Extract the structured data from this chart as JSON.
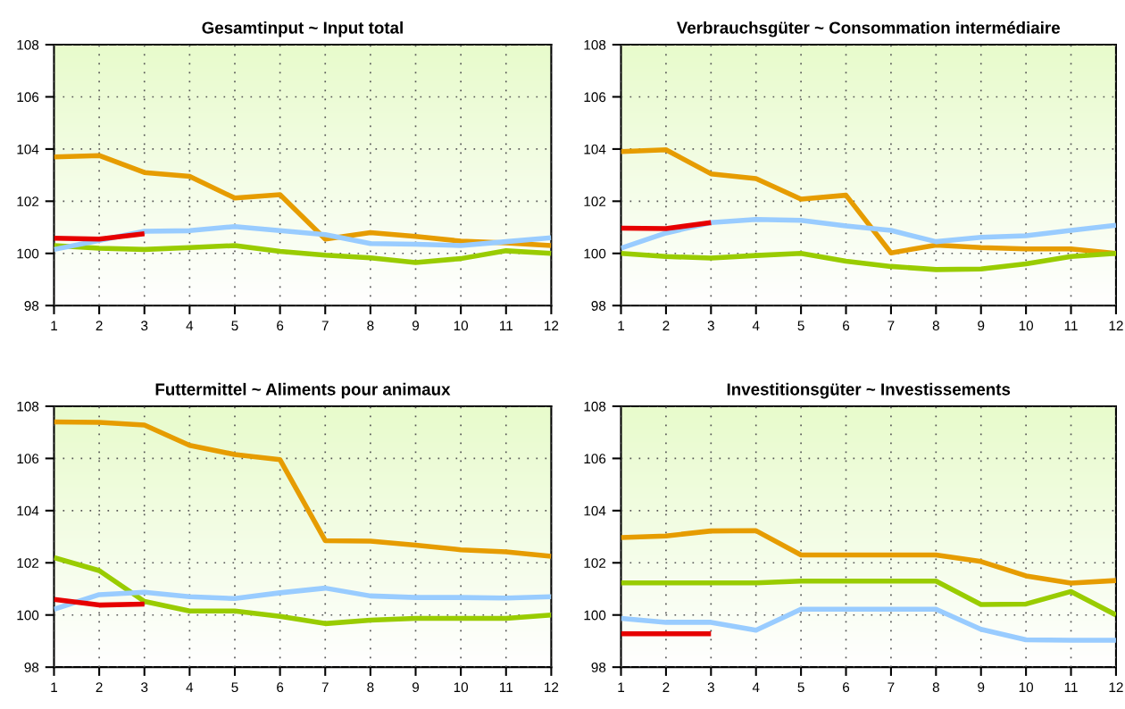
{
  "chart_data": [
    {
      "type": "line",
      "title": "Gesamtinput ~ Input total",
      "x": [
        1,
        2,
        3,
        4,
        5,
        6,
        7,
        8,
        9,
        10,
        11,
        12
      ],
      "xlim": [
        1,
        12
      ],
      "xticks": [
        1,
        2,
        3,
        4,
        5,
        6,
        7,
        8,
        9,
        10,
        11,
        12
      ],
      "ylim": [
        98,
        108
      ],
      "yticks": [
        98,
        100,
        102,
        104,
        106,
        108
      ],
      "grid": true,
      "marker": "none",
      "line_style": "solid",
      "series": [
        {
          "color": "#e69c00",
          "values": [
            103.7,
            103.75,
            103.1,
            102.95,
            102.12,
            102.25,
            100.55,
            100.8,
            100.65,
            100.47,
            100.4,
            100.3
          ]
        },
        {
          "color": "#99cc00",
          "values": [
            100.3,
            100.2,
            100.15,
            100.22,
            100.3,
            100.08,
            99.93,
            99.83,
            99.65,
            99.8,
            100.1,
            100.0
          ]
        },
        {
          "color": "#99ccff",
          "values": [
            100.15,
            100.5,
            100.85,
            100.87,
            101.03,
            100.87,
            100.72,
            100.38,
            100.35,
            100.3,
            100.45,
            100.6
          ]
        },
        {
          "color": "#e60000",
          "values": [
            100.58,
            100.55,
            100.75,
            null,
            null,
            null,
            null,
            null,
            null,
            null,
            null,
            null
          ]
        }
      ]
    },
    {
      "type": "line",
      "title": "Verbrauchsgüter ~ Consommation intermédiaire",
      "x": [
        1,
        2,
        3,
        4,
        5,
        6,
        7,
        8,
        9,
        10,
        11,
        12
      ],
      "xlim": [
        1,
        12
      ],
      "xticks": [
        1,
        2,
        3,
        4,
        5,
        6,
        7,
        8,
        9,
        10,
        11,
        12
      ],
      "ylim": [
        98,
        108
      ],
      "yticks": [
        98,
        100,
        102,
        104,
        106,
        108
      ],
      "grid": true,
      "marker": "none",
      "line_style": "solid",
      "series": [
        {
          "color": "#e69c00",
          "values": [
            103.9,
            103.97,
            103.05,
            102.87,
            102.08,
            102.23,
            100.02,
            100.32,
            100.22,
            100.17,
            100.17,
            100.0
          ]
        },
        {
          "color": "#99cc00",
          "values": [
            100.0,
            99.88,
            99.82,
            99.92,
            100.0,
            99.7,
            99.5,
            99.38,
            99.4,
            99.6,
            99.88,
            100.0
          ]
        },
        {
          "color": "#99ccff",
          "values": [
            100.2,
            100.78,
            101.18,
            101.3,
            101.27,
            101.05,
            100.88,
            100.45,
            100.62,
            100.68,
            100.88,
            101.08
          ]
        },
        {
          "color": "#e60000",
          "values": [
            100.97,
            100.95,
            101.18,
            null,
            null,
            null,
            null,
            null,
            null,
            null,
            null,
            null
          ]
        }
      ]
    },
    {
      "type": "line",
      "title": "Futtermittel ~ Aliments pour animaux",
      "x": [
        1,
        2,
        3,
        4,
        5,
        6,
        7,
        8,
        9,
        10,
        11,
        12
      ],
      "xlim": [
        1,
        12
      ],
      "xticks": [
        1,
        2,
        3,
        4,
        5,
        6,
        7,
        8,
        9,
        10,
        11,
        12
      ],
      "ylim": [
        98,
        108
      ],
      "yticks": [
        98,
        100,
        102,
        104,
        106,
        108
      ],
      "grid": true,
      "marker": "none",
      "line_style": "solid",
      "series": [
        {
          "color": "#e69c00",
          "values": [
            107.4,
            107.38,
            107.28,
            106.5,
            106.15,
            105.95,
            102.85,
            102.83,
            102.68,
            102.5,
            102.42,
            102.25
          ]
        },
        {
          "color": "#99cc00",
          "values": [
            102.2,
            101.7,
            100.52,
            100.15,
            100.15,
            99.95,
            99.67,
            99.8,
            99.87,
            99.87,
            99.87,
            100.0
          ]
        },
        {
          "color": "#99ccff",
          "values": [
            100.22,
            100.78,
            100.87,
            100.7,
            100.63,
            100.85,
            101.03,
            100.73,
            100.67,
            100.67,
            100.65,
            100.7
          ]
        },
        {
          "color": "#e60000",
          "values": [
            100.6,
            100.38,
            100.42,
            null,
            null,
            null,
            null,
            null,
            null,
            null,
            null,
            null
          ]
        }
      ]
    },
    {
      "type": "line",
      "title": "Investitionsgüter ~ Investissements",
      "x": [
        1,
        2,
        3,
        4,
        5,
        6,
        7,
        8,
        9,
        10,
        11,
        12
      ],
      "xlim": [
        1,
        12
      ],
      "xticks": [
        1,
        2,
        3,
        4,
        5,
        6,
        7,
        8,
        9,
        10,
        11,
        12
      ],
      "ylim": [
        98,
        108
      ],
      "yticks": [
        98,
        100,
        102,
        104,
        106,
        108
      ],
      "grid": true,
      "marker": "none",
      "line_style": "solid",
      "series": [
        {
          "color": "#e69c00",
          "values": [
            102.97,
            103.03,
            103.22,
            103.23,
            102.3,
            102.3,
            102.3,
            102.3,
            102.05,
            101.5,
            101.22,
            101.32
          ]
        },
        {
          "color": "#99cc00",
          "values": [
            101.23,
            101.23,
            101.23,
            101.23,
            101.3,
            101.3,
            101.3,
            101.3,
            100.4,
            100.42,
            100.9,
            100.0
          ]
        },
        {
          "color": "#99ccff",
          "values": [
            99.87,
            99.72,
            99.72,
            99.42,
            100.22,
            100.22,
            100.22,
            100.22,
            99.45,
            99.05,
            99.03,
            99.03
          ]
        },
        {
          "color": "#e60000",
          "values": [
            99.28,
            99.28,
            99.28,
            null,
            null,
            null,
            null,
            null,
            null,
            null,
            null,
            null
          ]
        }
      ]
    }
  ]
}
